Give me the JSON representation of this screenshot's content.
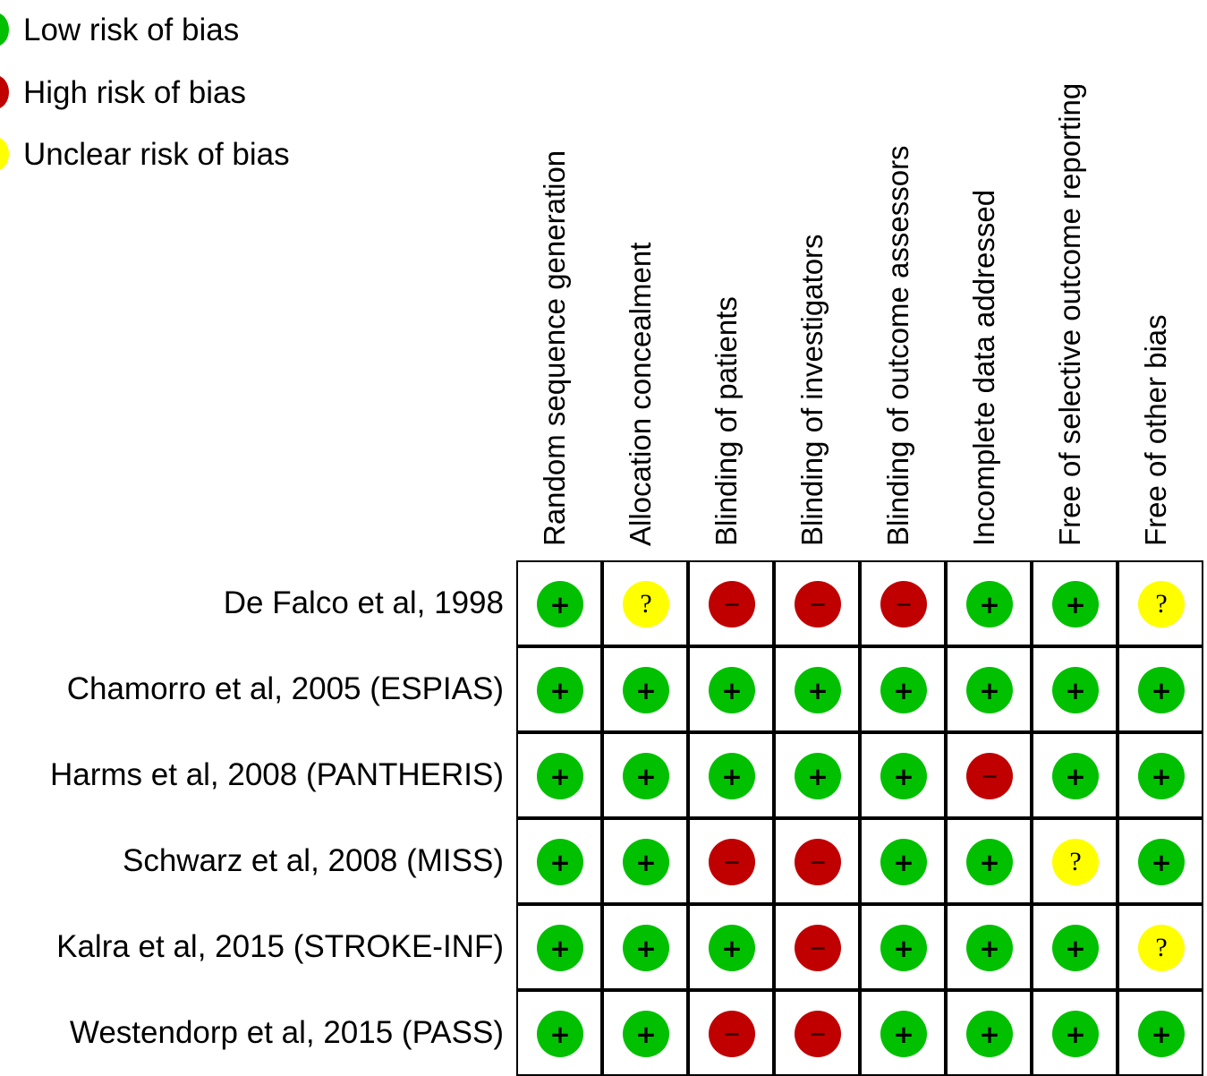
{
  "legend": [
    {
      "label": "Low risk of bias",
      "key": "low",
      "color": "#00c000"
    },
    {
      "label": "High risk of bias",
      "key": "high",
      "color": "#c00000"
    },
    {
      "label": "Unclear risk of bias",
      "key": "unclear",
      "color": "#ffff00"
    }
  ],
  "symbols": {
    "low": "+",
    "high": "−",
    "unclear": "?"
  },
  "columns": [
    "Random sequence generation",
    "Allocation concealment",
    "Blinding of patients",
    "Blinding of investigators",
    "Blinding of outcome assessors",
    "Incomplete data addressed",
    "Free of selective outcome reporting",
    "Free of other bias"
  ],
  "studies": [
    {
      "label": "De Falco et al, 1998",
      "ratings": [
        "low",
        "unclear",
        "high",
        "high",
        "high",
        "low",
        "low",
        "unclear"
      ]
    },
    {
      "label": "Chamorro et al, 2005 (ESPIAS)",
      "ratings": [
        "low",
        "low",
        "low",
        "low",
        "low",
        "low",
        "low",
        "low"
      ]
    },
    {
      "label": "Harms et al, 2008 (PANTHERIS)",
      "ratings": [
        "low",
        "low",
        "low",
        "low",
        "low",
        "high",
        "low",
        "low"
      ]
    },
    {
      "label": "Schwarz et al, 2008 (MISS)",
      "ratings": [
        "low",
        "low",
        "high",
        "high",
        "low",
        "low",
        "unclear",
        "low"
      ]
    },
    {
      "label": "Kalra et al, 2015 (STROKE-INF)",
      "ratings": [
        "low",
        "low",
        "low",
        "high",
        "low",
        "low",
        "low",
        "unclear"
      ]
    },
    {
      "label": "Westendorp et al, 2015 (PASS)",
      "ratings": [
        "low",
        "low",
        "high",
        "high",
        "low",
        "low",
        "low",
        "low"
      ]
    }
  ]
}
